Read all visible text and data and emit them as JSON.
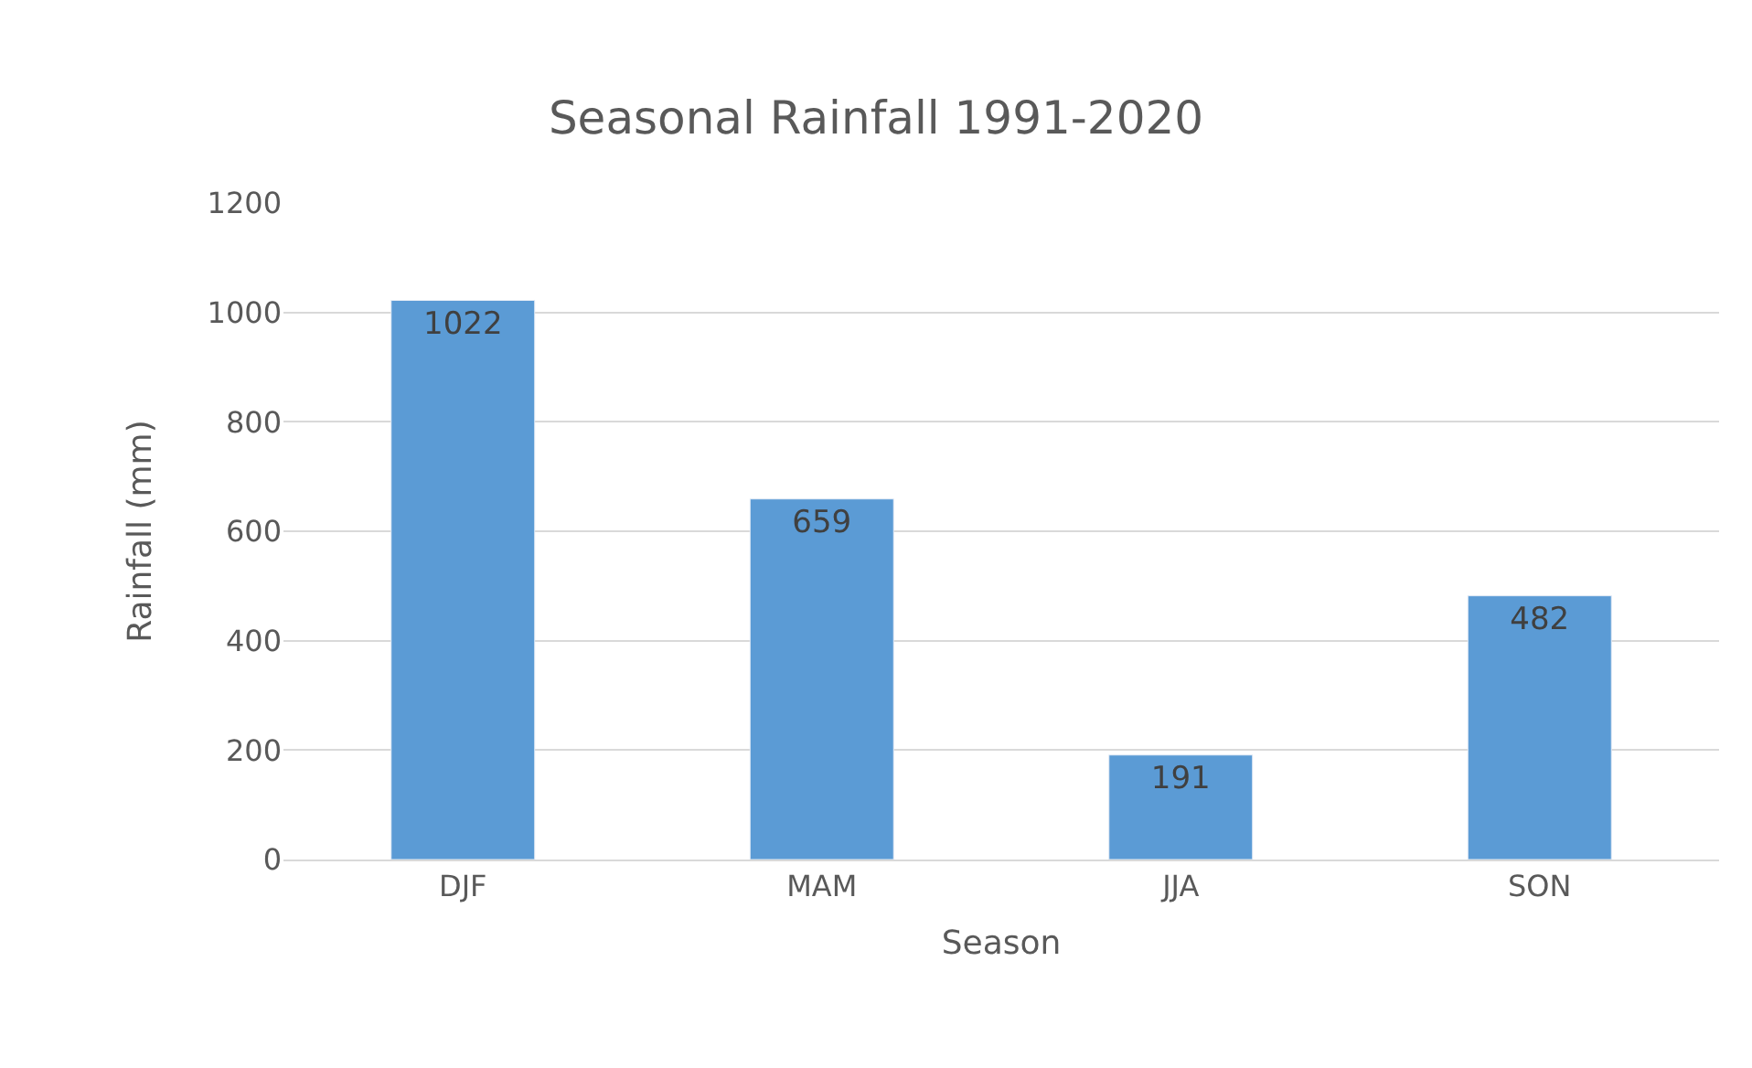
{
  "chart_data": {
    "type": "bar",
    "title": "Seasonal Rainfall 1991-2020",
    "xlabel": "Season",
    "ylabel": "Rainfall (mm)",
    "categories": [
      "DJF",
      "MAM",
      "JJA",
      "SON"
    ],
    "values": [
      1022,
      659,
      191,
      482
    ],
    "color": "#5b9bd5",
    "ylim": [
      0,
      1200
    ],
    "yticks": [
      0,
      200,
      400,
      600,
      800,
      1000,
      1200
    ],
    "grid": "y",
    "data_labels": true
  }
}
